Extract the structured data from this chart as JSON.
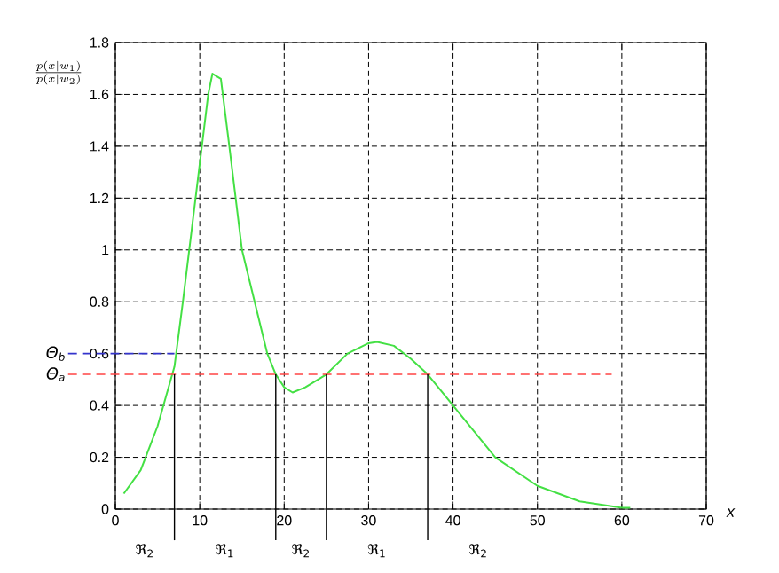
{
  "chart_data": {
    "type": "line",
    "xlabel": "x",
    "ylabel": "\\frac{p(x|w_1)}{p(x|w_2)}",
    "x": [
      1,
      3,
      5,
      7,
      8,
      9.5,
      11,
      11.5,
      12.5,
      13.5,
      15,
      16.5,
      18,
      19,
      20,
      21,
      22.5,
      25,
      27.5,
      30,
      31,
      33,
      35,
      37,
      40,
      42.5,
      45,
      50,
      55,
      60,
      61
    ],
    "series": [
      {
        "color": "#44e044",
        "values": [
          0.06,
          0.15,
          0.32,
          0.55,
          0.8,
          1.2,
          1.6,
          1.68,
          1.66,
          1.4,
          1.0,
          0.8,
          0.6,
          0.52,
          0.47,
          0.45,
          0.47,
          0.52,
          0.6,
          0.64,
          0.645,
          0.63,
          0.58,
          0.52,
          0.4,
          0.3,
          0.2,
          0.09,
          0.03,
          0.005,
          0.005
        ]
      }
    ],
    "xlim": [
      0,
      70
    ],
    "xticks": [
      0,
      10,
      20,
      30,
      40,
      50,
      60,
      70
    ],
    "ylim": [
      0,
      1.8
    ],
    "yticks": [
      0,
      0.2,
      0.4,
      0.6,
      0.8,
      1,
      1.2,
      1.4,
      1.6,
      1.8
    ],
    "grid": true,
    "ref_lines": [
      {
        "axis": "y",
        "value": 0.6,
        "label": "Θ$_{b}$",
        "color": "#3333cc",
        "line_style": "dashed"
      },
      {
        "axis": "y",
        "value": 0.52,
        "label": "Θ$_{a}$",
        "color": "#ff4444",
        "line_style": "dashed"
      },
      {
        "axis": "x",
        "value": 7,
        "color": "#000000",
        "line_style": "solid"
      },
      {
        "axis": "x",
        "value": 19,
        "color": "#000000",
        "line_style": "solid"
      },
      {
        "axis": "x",
        "value": 25,
        "color": "#000000",
        "line_style": "solid"
      },
      {
        "axis": "x",
        "value": 37,
        "color": "#000000",
        "line_style": "solid"
      }
    ],
    "annotations": [
      "ℜ$_{2}$",
      "ℜ$_{1}$",
      "ℜ$_{2}$",
      "ℜ$_{1}$",
      "ℜ$_{2}$"
    ]
  }
}
